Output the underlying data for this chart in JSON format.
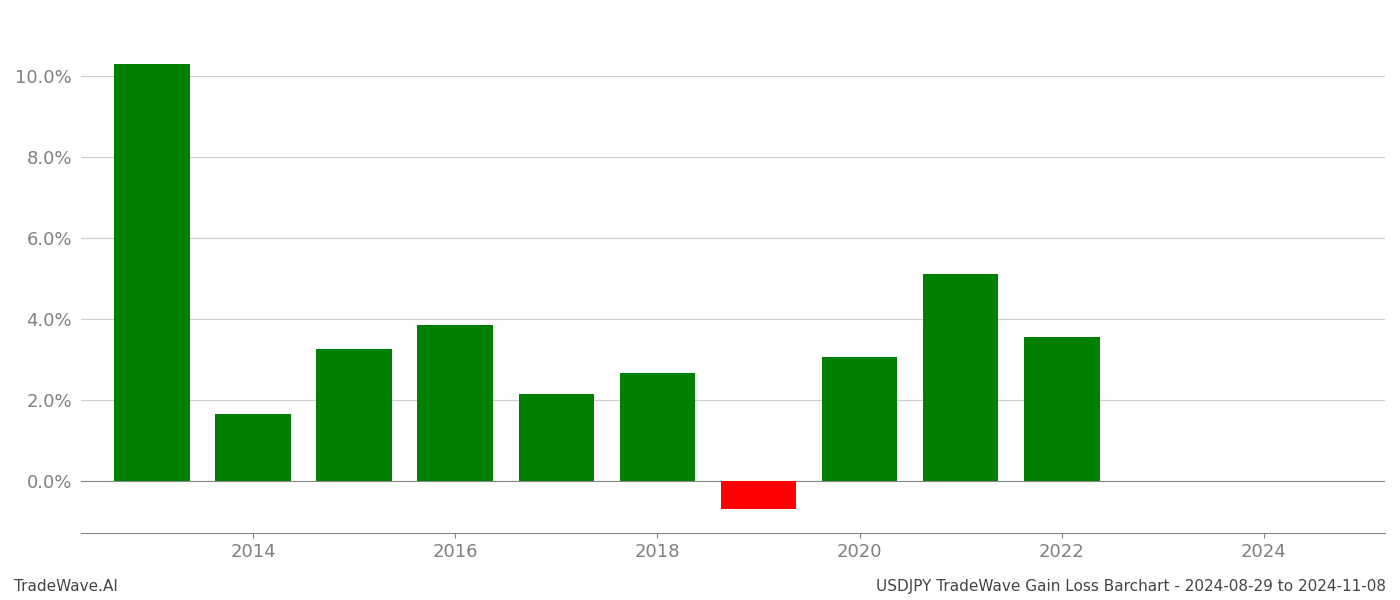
{
  "years": [
    2013,
    2014,
    2015,
    2016,
    2017,
    2018,
    2019,
    2020,
    2021,
    2022
  ],
  "values": [
    0.103,
    0.0165,
    0.0325,
    0.0385,
    0.0215,
    0.0265,
    -0.007,
    0.0305,
    0.051,
    0.0355
  ],
  "colors": [
    "#008000",
    "#008000",
    "#008000",
    "#008000",
    "#008000",
    "#008000",
    "#ff0000",
    "#008000",
    "#008000",
    "#008000"
  ],
  "footer_left": "TradeWave.AI",
  "footer_right": "USDJPY TradeWave Gain Loss Barchart - 2024-08-29 to 2024-11-08",
  "xlim": [
    2012.3,
    2025.2
  ],
  "ylim": [
    -0.013,
    0.115
  ],
  "yticks": [
    0.0,
    0.02,
    0.04,
    0.06,
    0.08,
    0.1
  ],
  "xtick_positions": [
    2014,
    2016,
    2018,
    2020,
    2022,
    2024
  ],
  "bar_width": 0.75,
  "background_color": "#ffffff",
  "grid_color": "#cccccc",
  "axis_label_color": "#808080",
  "footer_fontsize": 11,
  "tick_fontsize": 13
}
